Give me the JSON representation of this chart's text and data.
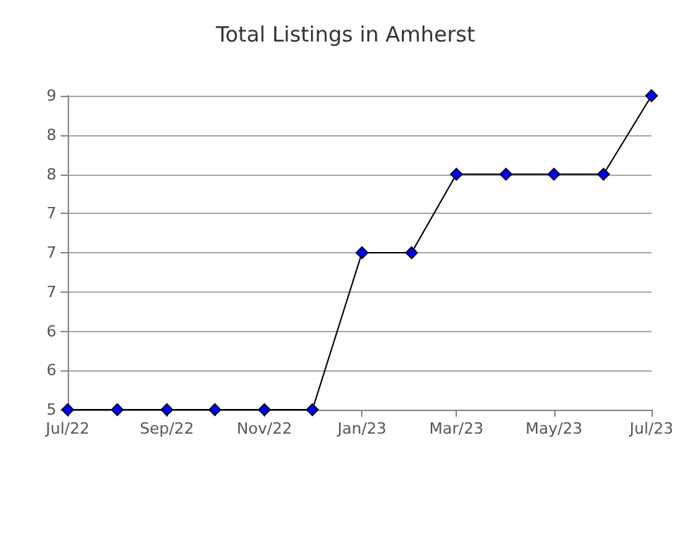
{
  "chart_data": {
    "type": "line",
    "title": "Total Listings in Amherst",
    "x": [
      "2022-07",
      "2022-08",
      "2022-09",
      "2022-10",
      "2022-11",
      "2022-12",
      "2023-01",
      "2023-02",
      "2023-03",
      "2023-04",
      "2023-05",
      "2023-06",
      "2023-07"
    ],
    "series": [
      {
        "color": "#0000ff",
        "values": [
          5,
          5,
          5,
          5,
          5,
          5,
          7,
          7,
          8,
          8,
          8,
          8,
          9
        ]
      }
    ],
    "xlim": [
      "2022-07",
      "2023-07"
    ],
    "xticks": [
      {
        "value": "2022-07",
        "label": "Jul/22"
      },
      {
        "value": "2022-09",
        "label": "Sep/22"
      },
      {
        "value": "2022-11",
        "label": "Nov/22"
      },
      {
        "value": "2023-01",
        "label": "Jan/23"
      },
      {
        "value": "2023-03",
        "label": "Mar/23"
      },
      {
        "value": "2023-05",
        "label": "May/23"
      },
      {
        "value": "2023-07",
        "label": "Jul/23"
      }
    ],
    "ylim": [
      5,
      9
    ],
    "yticks": [
      5,
      {
        "value": 5.5,
        "label": "6"
      },
      6,
      {
        "value": 6.5,
        "label": "7"
      },
      7,
      {
        "value": 7.5,
        "label": "7"
      },
      8,
      {
        "value": 8.5,
        "label": "8"
      },
      9
    ],
    "grid": "y",
    "marker": "diamond",
    "line_style": "solid"
  }
}
